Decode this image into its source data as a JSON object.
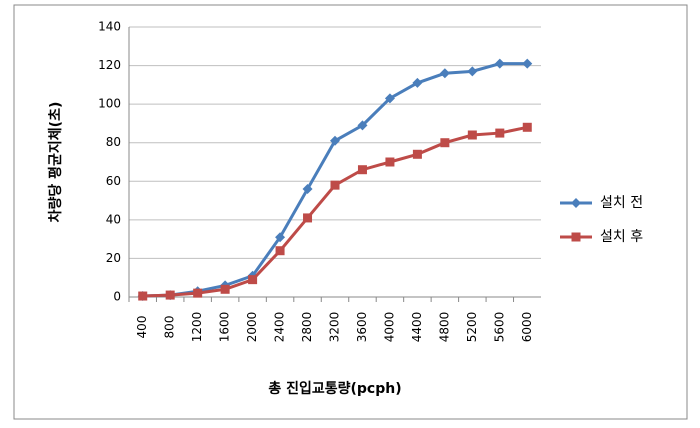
{
  "chart_data": {
    "type": "line",
    "x_label": "총 진입교통량(pcph)",
    "y_label": "차량당 평균지체(초)",
    "categories": [
      400,
      800,
      1200,
      1600,
      2000,
      2400,
      2800,
      3200,
      3600,
      4000,
      4400,
      4800,
      5200,
      5600,
      6000
    ],
    "series": [
      {
        "name": "설치 전",
        "color": "#4a7ebb",
        "marker": "diamond",
        "values": [
          0.5,
          1,
          3,
          6,
          11,
          31,
          56,
          81,
          89,
          103,
          111,
          116,
          117,
          121,
          121
        ]
      },
      {
        "name": "설치 후",
        "color": "#be4b48",
        "marker": "square",
        "values": [
          0.5,
          1,
          2,
          4,
          9,
          24,
          41,
          58,
          66,
          70,
          74,
          80,
          84,
          85,
          88
        ]
      }
    ],
    "ylim": [
      0,
      140
    ],
    "yticks": [
      0,
      20,
      40,
      60,
      80,
      100,
      120,
      140
    ],
    "grid": true,
    "legend": "right"
  }
}
